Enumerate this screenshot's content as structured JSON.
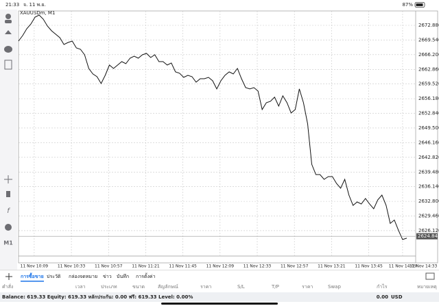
{
  "status_bar": {
    "time": "21:33",
    "date": "จ. 11 พ.ย.",
    "battery": "87%"
  },
  "chart_data": {
    "type": "line",
    "symbol_label": "XAUUSDm, M1",
    "color": "#111111",
    "values": [
      2669.3,
      2670.54,
      2672.1,
      2673.19,
      2674.75,
      2675.22,
      2674.28,
      2672.72,
      2671.63,
      2670.85,
      2670.07,
      2668.52,
      2668.98,
      2669.3,
      2667.74,
      2667.43,
      2666.18,
      2663.06,
      2661.81,
      2661.19,
      2659.63,
      2661.5,
      2663.84,
      2663.06,
      2663.84,
      2664.62,
      2664.15,
      2665.4,
      2665.87,
      2665.4,
      2666.18,
      2666.49,
      2665.56,
      2666.18,
      2664.62,
      2664.62,
      2663.84,
      2664.31,
      2662.28,
      2661.97,
      2661.03,
      2661.5,
      2661.19,
      2659.94,
      2660.72,
      2660.72,
      2661.03,
      2660.26,
      2658.39,
      2660.26,
      2661.5,
      2662.28,
      2661.81,
      2663.06,
      2660.72,
      2658.7,
      2658.39,
      2658.7,
      2657.92,
      2653.71,
      2655.27,
      2655.58,
      2656.52,
      2654.49,
      2656.83,
      2655.27,
      2652.93,
      2653.71,
      2658.39,
      2655.27,
      2650.44,
      2641.24,
      2638.9,
      2638.9,
      2637.81,
      2638.43,
      2638.43,
      2636.87,
      2635.78,
      2637.81,
      2634.22,
      2631.89,
      2632.67,
      2632.2,
      2633.45,
      2632.2,
      2631.11,
      2633.14,
      2634.22,
      2631.89,
      2627.77,
      2628.55,
      2626.21,
      2624.1,
      2624.41
    ],
    "xlim": [
      0,
      96
    ],
    "xticks": [
      {
        "value": 3.8,
        "label": "11 Nov 10:09"
      },
      {
        "value": 12.8,
        "label": "11 Nov 10:33"
      },
      {
        "value": 21.8,
        "label": "11 Nov 10:57"
      },
      {
        "value": 30.8,
        "label": "11 Nov 11:21"
      },
      {
        "value": 39.8,
        "label": "11 Nov 11:45"
      },
      {
        "value": 48.8,
        "label": "11 Nov 12:09"
      },
      {
        "value": 57.8,
        "label": "11 Nov 12:33"
      },
      {
        "value": 66.8,
        "label": "11 Nov 12:57"
      },
      {
        "value": 75.8,
        "label": "11 Nov 13:21"
      },
      {
        "value": 84.8,
        "label": "11 Nov 13:45"
      },
      {
        "value": 93.0,
        "label": "11 Nov 14:09"
      },
      {
        "value": 98.0,
        "label": "11 Nov 14:33"
      }
    ],
    "ylim": [
      2623.31,
      2675.84
    ],
    "yticks": [
      {
        "value": 2626.12,
        "label": "2626.120"
      },
      {
        "value": 2629.46,
        "label": "2629.460"
      },
      {
        "value": 2632.8,
        "label": "2632.800"
      },
      {
        "value": 2636.14,
        "label": "2636.140"
      },
      {
        "value": 2639.48,
        "label": "2639.480"
      },
      {
        "value": 2642.82,
        "label": "2642.820"
      },
      {
        "value": 2646.16,
        "label": "2646.160"
      },
      {
        "value": 2649.5,
        "label": "2649.500"
      },
      {
        "value": 2652.84,
        "label": "2652.840"
      },
      {
        "value": 2656.18,
        "label": "2656.180"
      },
      {
        "value": 2659.52,
        "label": "2659.520"
      },
      {
        "value": 2662.86,
        "label": "2662.860"
      },
      {
        "value": 2666.2,
        "label": "2666.200"
      },
      {
        "value": 2669.54,
        "label": "2669.540"
      },
      {
        "value": 2672.88,
        "label": "2672.880"
      }
    ],
    "last_price": {
      "value": 2624.847,
      "label": "2624.847"
    },
    "grid": true
  },
  "left_toolbar": {
    "timeframe": "M1"
  },
  "tabs": [
    "การซื้อขาย",
    "ประวัติ",
    "กล่องจดหมาย",
    "ข่าว",
    "บันทึก",
    "การตั้งค่า"
  ],
  "table": {
    "columns": [
      "คำสั่ง",
      "เวลา",
      "ประเภท",
      "ขนาด",
      "สัญลักษณ์",
      "ราคา",
      "S/L",
      "T/P",
      "ราคา",
      "Swap",
      "กำไร",
      "หมายเหตุ"
    ]
  },
  "account": {
    "summary": "Balance: 619.33 Equity: 619.33 หลักประกัน: 0.00 ฟรี: 619.33 Level: 0.00%",
    "profit": "0.00",
    "currency": "USD"
  }
}
